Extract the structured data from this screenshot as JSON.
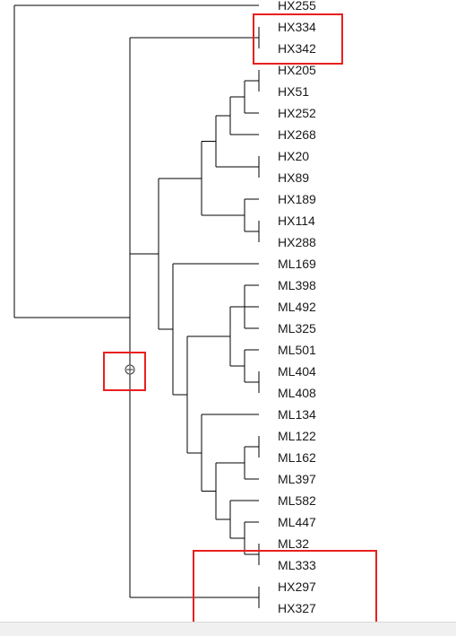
{
  "tree": {
    "leaves": [
      "HX255",
      "HX334",
      "HX342",
      "HX205",
      "HX51",
      "HX252",
      "HX268",
      "HX20",
      "HX89",
      "HX189",
      "HX114",
      "HX288",
      "ML169",
      "ML398",
      "ML492",
      "ML325",
      "ML501",
      "ML404",
      "ML408",
      "ML134",
      "ML122",
      "ML162",
      "ML397",
      "ML582",
      "ML447",
      "ML32",
      "ML333",
      "HX297",
      "HX327"
    ],
    "root_icon": "node-handle-icon",
    "highlight_color": "#e8201f"
  }
}
